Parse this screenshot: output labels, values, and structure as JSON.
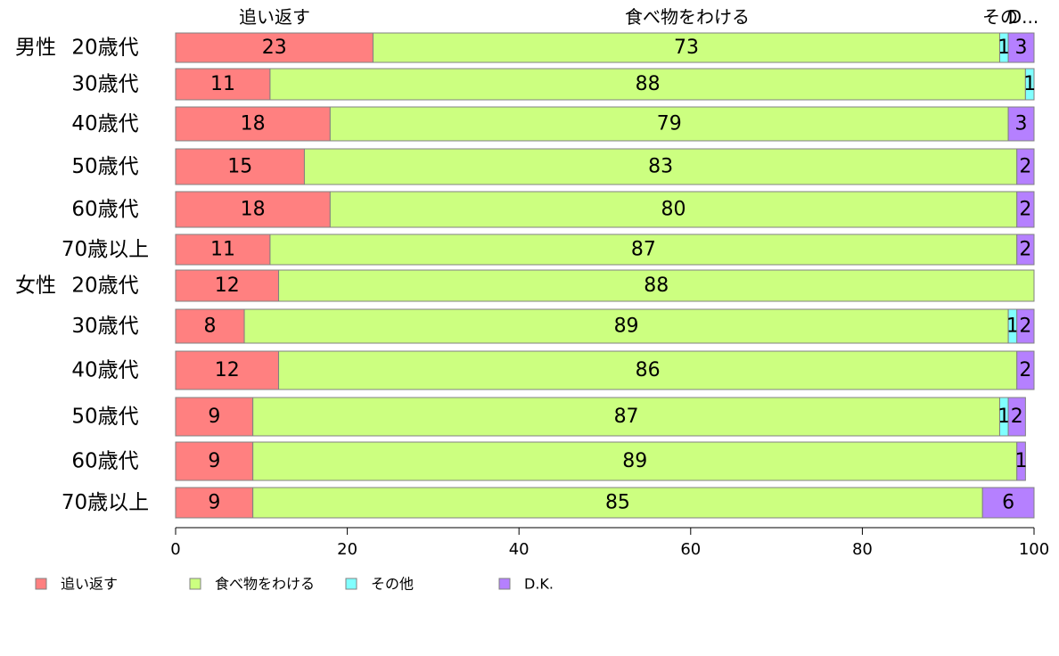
{
  "chart_data": {
    "type": "bar",
    "orientation": "horizontal",
    "stacked": true,
    "group_labels": [
      "男性",
      "女性"
    ],
    "categories": [
      "20歳代",
      "30歳代",
      "40歳代",
      "50歳代",
      "60歳代",
      "70歳以上",
      "20歳代",
      "30歳代",
      "40歳代",
      "50歳代",
      "60歳代",
      "70歳以上"
    ],
    "series": [
      {
        "name": "追い返す",
        "color": "#ff8080",
        "values": [
          23,
          11,
          18,
          15,
          18,
          11,
          12,
          8,
          12,
          9,
          9,
          9
        ]
      },
      {
        "name": "食べ物をわける",
        "color": "#ccff80",
        "values": [
          73,
          88,
          79,
          83,
          80,
          87,
          88,
          89,
          86,
          87,
          89,
          85
        ]
      },
      {
        "name": "その他",
        "color": "#80ffff",
        "values": [
          1,
          1,
          0,
          0,
          0,
          0,
          0,
          1,
          0,
          1,
          0,
          0
        ]
      },
      {
        "name": "D.K.",
        "color": "#b580ff",
        "values": [
          3,
          0,
          3,
          2,
          2,
          2,
          0,
          2,
          2,
          2,
          1,
          6
        ]
      }
    ],
    "header_labels": [
      "追い返す",
      "食べ物をわける",
      "その",
      "D..."
    ],
    "xlim": [
      0,
      100
    ],
    "xticks": [
      "0",
      "20",
      "40",
      "60",
      "80",
      "100"
    ],
    "legend": {
      "position": "bottom",
      "items": [
        "追い返す",
        "食べ物をわける",
        "その他",
        "D.K."
      ]
    },
    "grid": false
  }
}
